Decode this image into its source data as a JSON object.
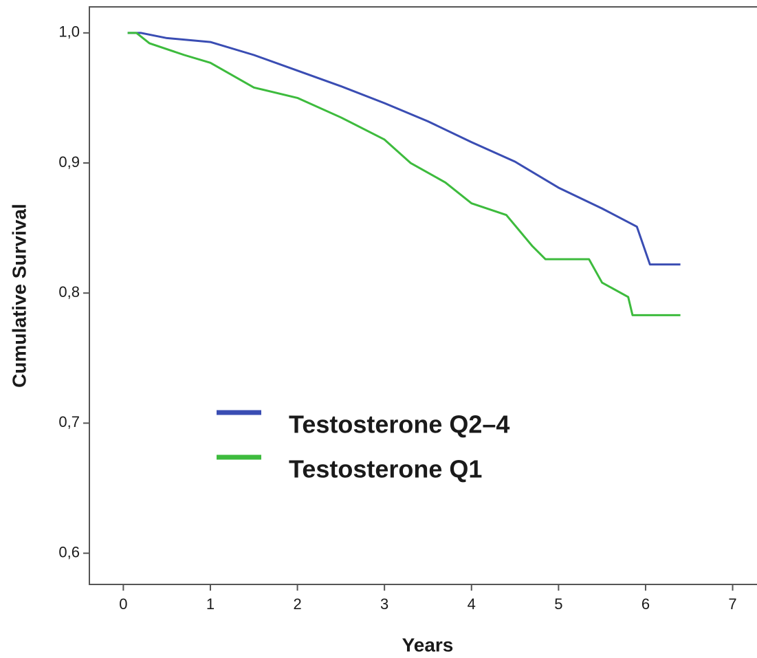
{
  "chart_data": {
    "type": "line",
    "x_label": "Years",
    "y_label": "Cumulative Survival",
    "xlim": [
      -0.39,
      7.28
    ],
    "ylim": [
      0.576,
      1.02
    ],
    "xticks": [
      0,
      1,
      2,
      3,
      4,
      5,
      6,
      7
    ],
    "yticks": [
      {
        "value": 0.6,
        "label": "0,6"
      },
      {
        "value": 0.7,
        "label": "0,7"
      },
      {
        "value": 0.8,
        "label": "0,8"
      },
      {
        "value": 0.9,
        "label": "0,9"
      },
      {
        "value": 1.0,
        "label": "1,0"
      }
    ],
    "series": [
      {
        "name": "Testosterone Q2–4",
        "color": "#3a4db3",
        "x": [
          0.05,
          0.2,
          0.5,
          1.0,
          1.5,
          2.0,
          2.5,
          3.0,
          3.5,
          4.0,
          4.5,
          5.0,
          5.5,
          5.9,
          6.05,
          6.4
        ],
        "values": [
          1.0,
          1.0,
          0.996,
          0.993,
          0.983,
          0.971,
          0.959,
          0.946,
          0.932,
          0.916,
          0.901,
          0.881,
          0.865,
          0.851,
          0.822,
          0.822
        ]
      },
      {
        "name": "Testosterone Q1",
        "color": "#3dbb3d",
        "x": [
          0.05,
          0.15,
          0.3,
          0.7,
          1.0,
          1.5,
          2.0,
          2.5,
          3.0,
          3.3,
          3.7,
          4.0,
          4.4,
          4.7,
          4.85,
          5.35,
          5.5,
          5.8,
          5.85,
          6.4
        ],
        "values": [
          1.0,
          1.0,
          0.992,
          0.983,
          0.977,
          0.958,
          0.95,
          0.935,
          0.918,
          0.9,
          0.885,
          0.869,
          0.86,
          0.836,
          0.826,
          0.826,
          0.808,
          0.797,
          0.783,
          0.783
        ]
      }
    ]
  }
}
